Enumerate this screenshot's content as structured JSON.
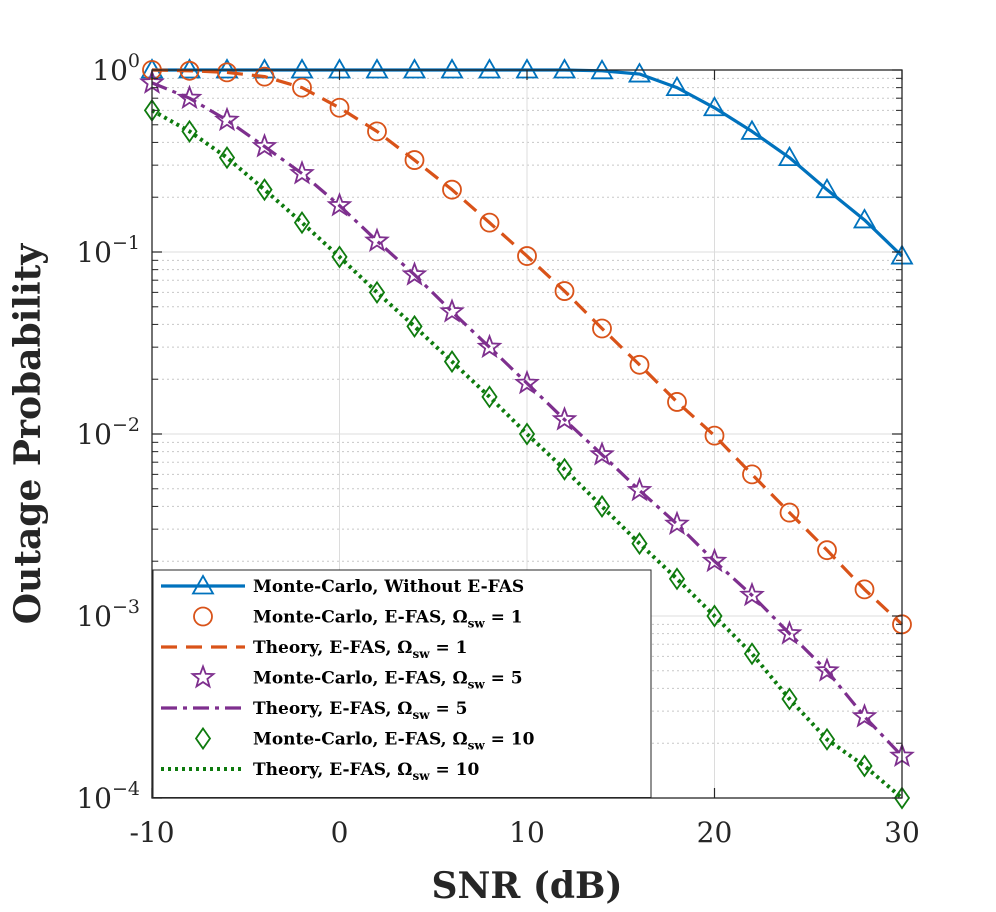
{
  "chart_data": {
    "type": "line",
    "title": "",
    "xlabel": "SNR (dB)",
    "ylabel": "Outage Probability",
    "xlim": [
      -10,
      30
    ],
    "ylim": [
      0.0001,
      1
    ],
    "yscale": "log",
    "grid": true,
    "legend_position": "bottom-left",
    "x_ticks": [
      -10,
      0,
      10,
      20,
      30
    ],
    "x_tick_labels": [
      "-10",
      "0",
      "10",
      "20",
      "30"
    ],
    "y_ticks": [
      0.0001,
      0.001,
      0.01,
      0.1,
      1
    ],
    "y_tick_labels": [
      {
        "base": "10",
        "exp": "−4"
      },
      {
        "base": "10",
        "exp": "−3"
      },
      {
        "base": "10",
        "exp": "−2"
      },
      {
        "base": "10",
        "exp": "−1"
      },
      {
        "base": "10",
        "exp": "0"
      }
    ],
    "series": [
      {
        "id": "mc-without",
        "legend": {
          "text": "Monte-Carlo, Without E-FAS",
          "sub": "",
          "suffix": ""
        },
        "color": "#0072BD",
        "line": "solid",
        "marker": "triangle",
        "x": [
          -10,
          -8,
          -6,
          -4,
          -2,
          0,
          2,
          4,
          6,
          8,
          10,
          12,
          14,
          16,
          18,
          20,
          22,
          24,
          26,
          28,
          30
        ],
        "y": [
          1,
          1,
          1,
          1,
          1,
          1,
          1,
          1,
          1,
          1,
          1,
          1,
          0.99,
          0.95,
          0.8,
          0.62,
          0.46,
          0.33,
          0.22,
          0.15,
          0.095
        ]
      },
      {
        "id": "mc-efas-1",
        "legend": {
          "text": "Monte-Carlo, E-FAS, Ω",
          "sub": "sw",
          "suffix": " = 1"
        },
        "color": "#D95319",
        "line": "none",
        "marker": "circle",
        "x": [
          -10,
          -8,
          -6,
          -4,
          -2,
          0,
          2,
          4,
          6,
          8,
          10,
          12,
          14,
          16,
          18,
          20,
          22,
          24,
          26,
          28,
          30
        ],
        "y": [
          1,
          0.99,
          0.97,
          0.92,
          0.8,
          0.62,
          0.46,
          0.32,
          0.22,
          0.145,
          0.095,
          0.061,
          0.038,
          0.024,
          0.015,
          0.0098,
          0.006,
          0.0037,
          0.0023,
          0.0014,
          0.0009
        ]
      },
      {
        "id": "th-efas-1",
        "legend": {
          "text": "Theory, E-FAS, Ω",
          "sub": "sw",
          "suffix": " = 1"
        },
        "color": "#D95319",
        "line": "dash",
        "marker": "none",
        "x": [
          -10,
          -8,
          -6,
          -4,
          -2,
          0,
          2,
          4,
          6,
          8,
          10,
          12,
          14,
          16,
          18,
          20,
          22,
          24,
          26,
          28,
          30
        ],
        "y": [
          1,
          0.99,
          0.97,
          0.92,
          0.8,
          0.62,
          0.46,
          0.32,
          0.22,
          0.145,
          0.095,
          0.061,
          0.038,
          0.024,
          0.015,
          0.0098,
          0.006,
          0.0037,
          0.0023,
          0.0014,
          0.0009
        ]
      },
      {
        "id": "mc-efas-5",
        "legend": {
          "text": "Monte-Carlo, E-FAS, Ω",
          "sub": "sw",
          "suffix": " = 5"
        },
        "color": "#7E2F8E",
        "line": "none",
        "marker": "star",
        "x": [
          -10,
          -8,
          -6,
          -4,
          -2,
          0,
          2,
          4,
          6,
          8,
          10,
          12,
          14,
          16,
          18,
          20,
          22,
          24,
          26,
          28,
          30
        ],
        "y": [
          0.85,
          0.7,
          0.53,
          0.38,
          0.27,
          0.18,
          0.115,
          0.075,
          0.047,
          0.03,
          0.019,
          0.012,
          0.0077,
          0.0049,
          0.0032,
          0.002,
          0.0013,
          0.0008,
          0.0005,
          0.00028,
          0.00017
        ]
      },
      {
        "id": "th-efas-5",
        "legend": {
          "text": "Theory, E-FAS, Ω",
          "sub": "sw",
          "suffix": " = 5"
        },
        "color": "#7E2F8E",
        "line": "dashdot",
        "marker": "none",
        "x": [
          -10,
          -8,
          -6,
          -4,
          -2,
          0,
          2,
          4,
          6,
          8,
          10,
          12,
          14,
          16,
          18,
          20,
          22,
          24,
          26,
          28,
          30
        ],
        "y": [
          0.85,
          0.7,
          0.53,
          0.38,
          0.27,
          0.18,
          0.115,
          0.075,
          0.047,
          0.03,
          0.019,
          0.012,
          0.0077,
          0.0049,
          0.0032,
          0.002,
          0.0013,
          0.0008,
          0.0005,
          0.00028,
          0.00017
        ]
      },
      {
        "id": "mc-efas-10",
        "legend": {
          "text": "Monte-Carlo, E-FAS, Ω",
          "sub": "sw",
          "suffix": " = 10"
        },
        "color": "#0E7B0E",
        "line": "none",
        "marker": "diamond",
        "x": [
          -10,
          -8,
          -6,
          -4,
          -2,
          0,
          2,
          4,
          6,
          8,
          10,
          12,
          14,
          16,
          18,
          20,
          22,
          24,
          26,
          28,
          30
        ],
        "y": [
          0.6,
          0.46,
          0.33,
          0.22,
          0.145,
          0.094,
          0.06,
          0.039,
          0.025,
          0.016,
          0.01,
          0.0064,
          0.004,
          0.0025,
          0.0016,
          0.001,
          0.00062,
          0.00035,
          0.00021,
          0.00015,
          0.0001
        ]
      },
      {
        "id": "th-efas-10",
        "legend": {
          "text": "Theory, E-FAS, Ω",
          "sub": "sw",
          "suffix": " = 10"
        },
        "color": "#0E7B0E",
        "line": "dot",
        "marker": "none",
        "x": [
          -10,
          -8,
          -6,
          -4,
          -2,
          0,
          2,
          4,
          6,
          8,
          10,
          12,
          14,
          16,
          18,
          20,
          22,
          24,
          26,
          28,
          30
        ],
        "y": [
          0.6,
          0.46,
          0.33,
          0.22,
          0.145,
          0.094,
          0.06,
          0.039,
          0.025,
          0.016,
          0.01,
          0.0064,
          0.004,
          0.0025,
          0.0016,
          0.001,
          0.00062,
          0.00035,
          0.00021,
          0.00015,
          0.0001
        ]
      }
    ]
  }
}
